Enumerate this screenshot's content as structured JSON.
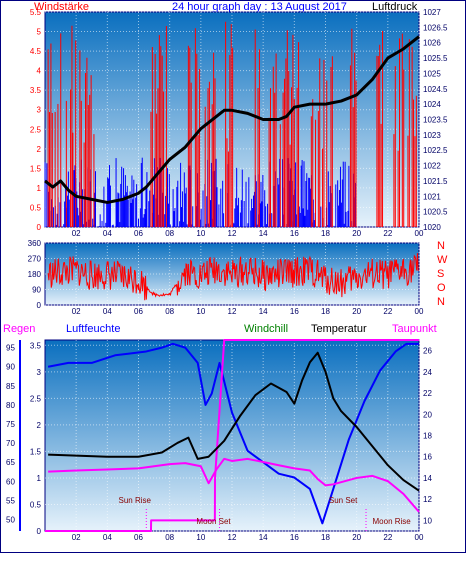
{
  "header": {
    "windstarke": "Windstärke",
    "title": "24 hour graph day : 13 August 2017",
    "luftdruck": "Luftdruck"
  },
  "colors": {
    "frame": "#000080",
    "red": "#ff0000",
    "blue": "#0000ff",
    "black": "#000000",
    "magenta": "#ff00ff",
    "green": "#008000",
    "sky_top": "#0a6fbf",
    "sky_bottom": "#e6f2fb"
  },
  "chart_data": [
    {
      "type": "line",
      "title": "24 hour graph day : 13 August 2017",
      "ylabel": "Windstärke",
      "y2label": "Luftdruck",
      "x_ticks": [
        "02",
        "04",
        "06",
        "08",
        "10",
        "12",
        "14",
        "16",
        "18",
        "20",
        "22",
        "00"
      ],
      "ylim": [
        0,
        5.5
      ],
      "y_ticks": [
        "0",
        "0.5",
        "1",
        "1.5",
        "2",
        "2.5",
        "3",
        "3.5",
        "4",
        "4.5",
        "5",
        "5.5"
      ],
      "y2lim": [
        1020,
        1027
      ],
      "y2_ticks": [
        "1020",
        "1020.5",
        "1021",
        "1021.5",
        "1022",
        "1022.5",
        "1023",
        "1023.5",
        "1024",
        "1024.5",
        "1025",
        "1025.5",
        "1026",
        "1026.5",
        "1027"
      ],
      "series": [
        {
          "name": "Luftdruck",
          "axis": "right",
          "x": [
            0,
            0.5,
            1,
            1.5,
            2,
            3,
            4,
            5,
            6,
            6.5,
            7,
            8,
            9,
            10,
            11,
            11.5,
            12,
            13,
            14,
            15,
            15.5,
            16,
            17,
            18,
            19,
            20,
            21,
            22,
            23,
            24
          ],
          "values": [
            1021.5,
            1021.3,
            1021.5,
            1021.2,
            1021.0,
            1020.9,
            1020.8,
            1020.9,
            1021.1,
            1021.3,
            1021.6,
            1022.2,
            1022.6,
            1023.2,
            1023.6,
            1023.8,
            1023.8,
            1023.7,
            1023.5,
            1023.5,
            1023.6,
            1023.9,
            1024.0,
            1024.0,
            1024.1,
            1024.3,
            1024.8,
            1025.5,
            1025.8,
            1026.2
          ]
        }
      ],
      "bars": [
        {
          "name": "Windstärke",
          "color": "red",
          "segments": [
            [
              0.2,
              1.8
            ],
            [
              1.7,
              3.2
            ],
            [
              6.8,
              7.9
            ],
            [
              9.2,
              11.2
            ],
            [
              11.5,
              12.2
            ],
            [
              13.4,
              13.9
            ],
            [
              14.2,
              14.9
            ],
            [
              15.1,
              16.3
            ],
            [
              17.0,
              18.5
            ],
            [
              19.6,
              20.0
            ],
            [
              21.3,
              21.8
            ],
            [
              22.3,
              23.9
            ]
          ],
          "max": 5.3,
          "min": 1.9
        },
        {
          "name": "Windstärke (niedrig)",
          "color": "blue",
          "segments": [
            [
              0,
              20
            ]
          ],
          "max": 1.8,
          "min": 0
        }
      ]
    },
    {
      "type": "scatter",
      "title": "",
      "ylabel": "N W S O N",
      "x_ticks": [
        "02",
        "04",
        "06",
        "08",
        "10",
        "12",
        "14",
        "16",
        "18",
        "20",
        "22",
        "00"
      ],
      "ylim": [
        0,
        360
      ],
      "y_ticks": [
        "0",
        "90",
        "180",
        "270",
        "360"
      ],
      "compass": [
        "N",
        "W",
        "S",
        "O",
        "N"
      ],
      "series": [
        {
          "name": "Windrichtung",
          "x": [
            0.2,
            1.0,
            2.0,
            3.0,
            4.0,
            5.0,
            6.0,
            7.0,
            8.0,
            9.0,
            10.0,
            11.0,
            12.0,
            13.0,
            14.0,
            15.0,
            16.0,
            17.0,
            18.0,
            19.0,
            20.0,
            21.0,
            22.0,
            23.0,
            24.0
          ],
          "values": [
            180,
            190,
            200,
            170,
            180,
            160,
            150,
            60,
            60,
            200,
            170,
            210,
            180,
            200,
            170,
            180,
            190,
            200,
            150,
            130,
            160,
            180,
            170,
            200,
            220
          ]
        }
      ]
    },
    {
      "type": "line",
      "title": "",
      "labels": {
        "regen": "Regen",
        "luftfeuchte": "Luftfeuchte",
        "windchill": "Windchill",
        "temperatur": "Temperatur",
        "taupunkt": "Taupunkt"
      },
      "x_ticks": [
        "02",
        "04",
        "06",
        "08",
        "10",
        "12",
        "14",
        "16",
        "18",
        "20",
        "22",
        "00"
      ],
      "left_ticks": [
        "0",
        "0.5",
        "1",
        "1.5",
        "2",
        "2.5",
        "3",
        "3.5"
      ],
      "ylim_left": [
        0,
        3.6
      ],
      "humidity_ticks": [
        "50",
        "55",
        "60",
        "65",
        "70",
        "75",
        "80",
        "85",
        "90",
        "95"
      ],
      "humidity_range": [
        47,
        97
      ],
      "ylim_right": [
        9,
        27
      ],
      "right_ticks": [
        "10",
        "12",
        "14",
        "16",
        "18",
        "20",
        "22",
        "24",
        "26"
      ],
      "annotations": [
        "Sun Rise",
        "Moon Set",
        "Sun Set",
        "Moon Rise"
      ],
      "series": [
        {
          "name": "Luftfeuchte",
          "color": "blue",
          "x": [
            0.2,
            1.5,
            3,
            4.5,
            6.5,
            7.5,
            8.2,
            9,
            9.8,
            10.3,
            10.7,
            11.2,
            12,
            13,
            14,
            15,
            16,
            17,
            17.8,
            18.5,
            19.5,
            20.5,
            21.5,
            22.5,
            23.2,
            24
          ],
          "values": [
            90,
            91,
            91,
            93,
            94,
            95,
            96,
            95,
            91,
            80,
            83,
            91,
            78,
            68,
            65,
            62,
            61,
            58,
            49,
            58,
            71,
            81,
            89,
            94,
            96,
            96
          ]
        },
        {
          "name": "Regen",
          "color": "magenta",
          "x": [
            0,
            6.8,
            6.81,
            10.9,
            10.91,
            11.5,
            24
          ],
          "values": [
            0,
            0,
            0.2,
            0.2,
            1.0,
            3.6,
            3.6
          ]
        },
        {
          "name": "Temperatur",
          "color": "black",
          "x": [
            0.2,
            2,
            4,
            6,
            7.5,
            8.5,
            9.2,
            9.8,
            10.5,
            11.5,
            12.5,
            13.5,
            14.5,
            15.5,
            16,
            16.5,
            17,
            17.5,
            18,
            18.5,
            19,
            20,
            21,
            22,
            23,
            24
          ],
          "values": [
            16.2,
            16.1,
            16.0,
            16.0,
            16.4,
            17.3,
            17.8,
            15.8,
            16.0,
            17.5,
            19.8,
            21.8,
            22.9,
            22.1,
            21.0,
            23.2,
            24.9,
            25.8,
            24.0,
            21.5,
            20.3,
            18.8,
            17.0,
            15.2,
            13.8,
            12.8
          ]
        },
        {
          "name": "Taupunkt",
          "color": "magenta",
          "x": [
            0.2,
            2,
            4,
            6,
            8,
            9,
            10,
            10.5,
            11,
            11.5,
            12,
            13,
            14,
            15,
            16,
            17,
            17.5,
            18,
            18.5,
            19,
            20,
            21,
            22,
            23,
            24
          ],
          "values": [
            14.6,
            14.7,
            14.8,
            14.9,
            15.3,
            15.4,
            15.1,
            13.5,
            14.8,
            15.8,
            15.6,
            15.8,
            15.5,
            15.2,
            14.9,
            14.7,
            13.9,
            13.3,
            13.4,
            13.6,
            14.0,
            14.2,
            13.7,
            12.5,
            10.8
          ]
        }
      ]
    }
  ]
}
